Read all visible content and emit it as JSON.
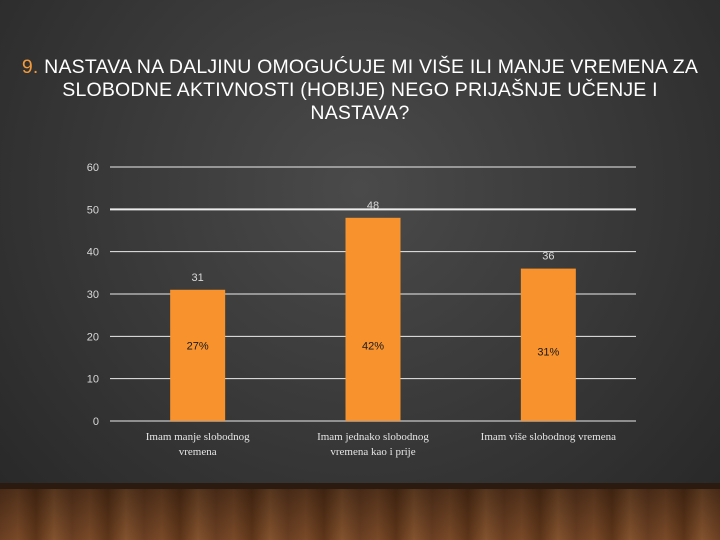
{
  "slide": {
    "title_number": "9.",
    "title_text": "NASTAVA NA DALJINU OMOGUĆUJE MI VIŠE ILI MANJE VREMENA ZA SLOBODNE AKTIVNOSTI (HOBIJE) NEGO PRIJAŠNJE UČENJE I NASTAVA?"
  },
  "colors": {
    "bar": "#f7922d",
    "gridline": "#ffffff",
    "title_number": "#f39a3a"
  },
  "chart_data": {
    "type": "bar",
    "title": "9. NASTAVA NA DALJINU OMOGUĆUJE MI VIŠE ILI MANJE VREMENA ZA SLOBODNE AKTIVNOSTI (HOBIJE) NEGO PRIJAŠNJE UČENJE I NASTAVA?",
    "categories": [
      [
        "Imam manje slobodnog",
        "vremena"
      ],
      [
        "Imam jednako slobodnog",
        "vremena kao i prije"
      ],
      [
        "Imam više slobodnog vremena"
      ]
    ],
    "values": [
      31,
      48,
      36
    ],
    "percent_labels": [
      "27%",
      "42%",
      "31%"
    ],
    "yticks": [
      0,
      10,
      20,
      30,
      40,
      50,
      60
    ],
    "ylim": [
      0,
      60
    ],
    "grid": true,
    "legend": "none",
    "xlabel": "",
    "ylabel": ""
  }
}
